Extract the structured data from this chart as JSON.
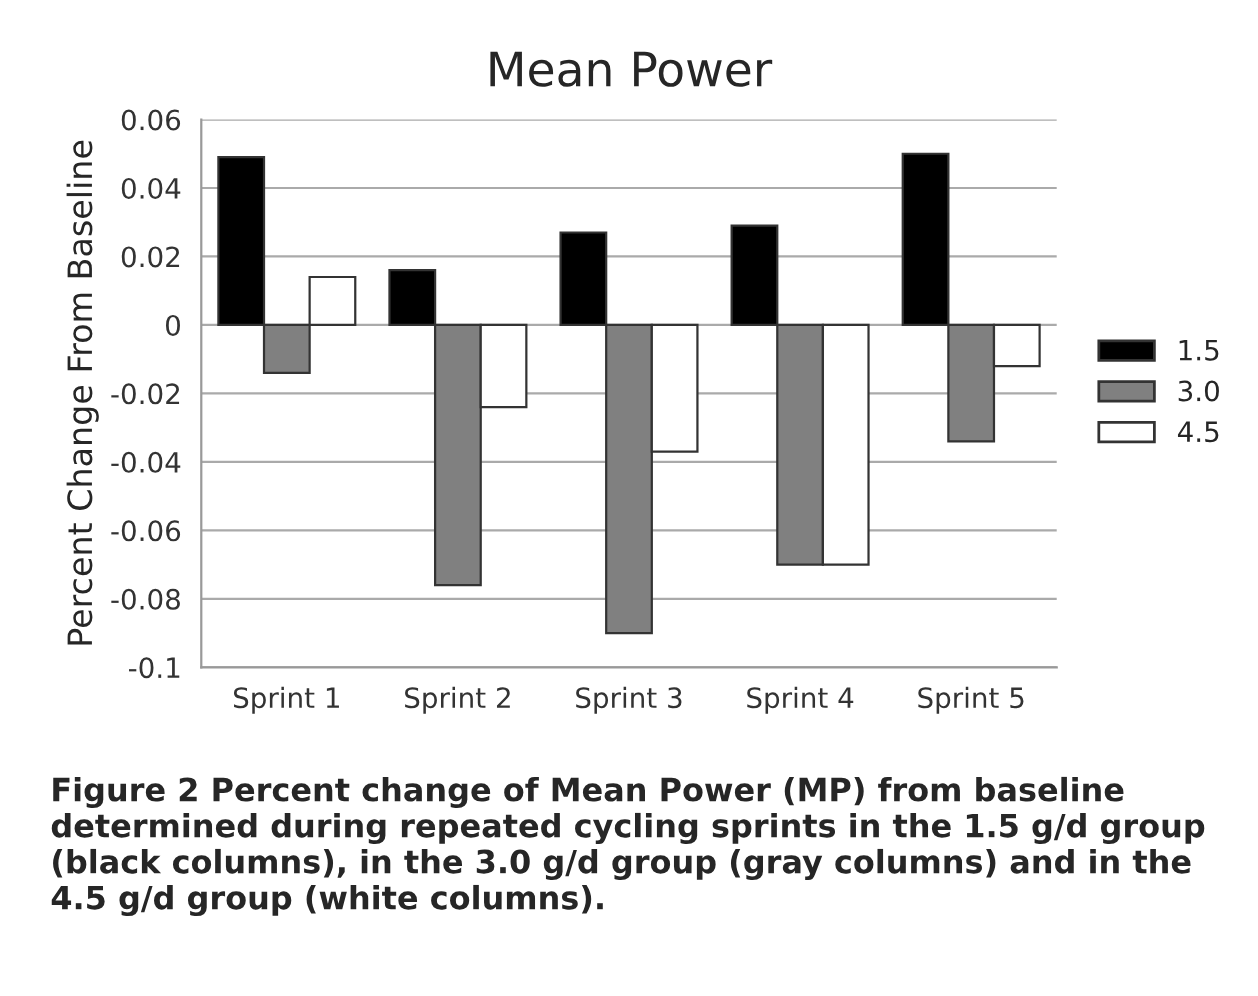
{
  "chart_data": {
    "type": "bar",
    "title": "Mean Power",
    "ylabel": "Percent Change From Baseline",
    "categories": [
      "Sprint 1",
      "Sprint 2",
      "Sprint 3",
      "Sprint 4",
      "Sprint 5"
    ],
    "series": [
      {
        "name": "1.5",
        "color": "#000000",
        "values": [
          0.049,
          0.016,
          0.027,
          0.029,
          0.05
        ]
      },
      {
        "name": "3.0",
        "color": "#808080",
        "values": [
          -0.014,
          -0.076,
          -0.09,
          -0.07,
          -0.034
        ]
      },
      {
        "name": "4.5",
        "color": "#ffffff",
        "values": [
          0.014,
          -0.024,
          -0.037,
          -0.07,
          -0.012
        ]
      }
    ],
    "ylim": [
      -0.1,
      0.06
    ],
    "yticks": [
      0.06,
      0.04,
      0.02,
      {
        "value": 0,
        "label": "0"
      },
      -0.02,
      -0.04,
      -0.06,
      -0.08,
      -0.1
    ],
    "grid": "y",
    "legend": "right",
    "annotations": [
      "Figure 2 Percent change of Mean Power (MP) from baseline determined during repeated cycling sprints in the 1.5 g/d group (black columns), in the 3.0 g/d group (gray columns) and in the 4.5 g/d group (white columns)."
    ]
  }
}
